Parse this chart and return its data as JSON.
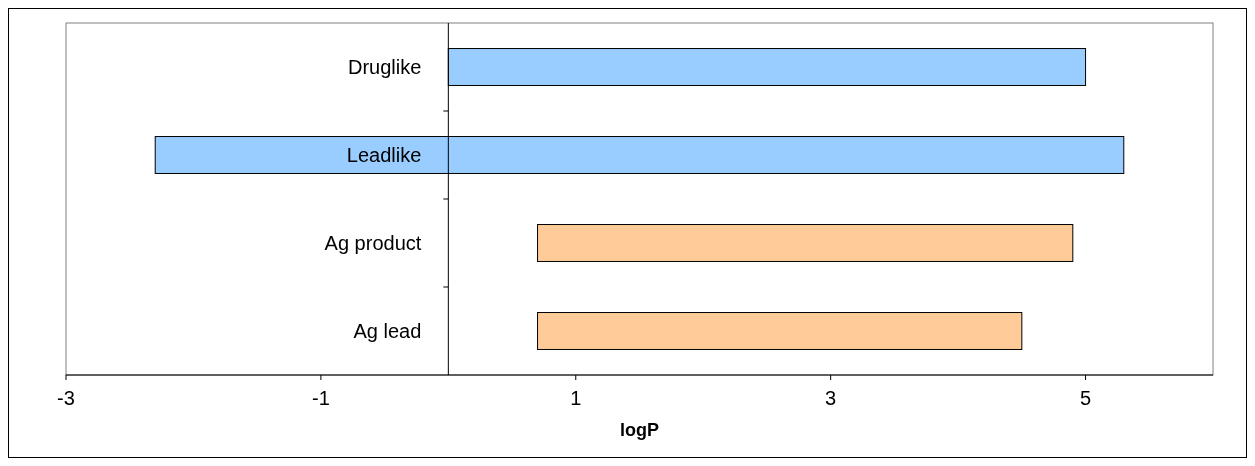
{
  "chart_data": {
    "type": "bar",
    "orientation": "horizontal",
    "xlabel": "logP",
    "categories": [
      "Druglike",
      "Leadlike",
      "Ag product",
      "Ag lead"
    ],
    "base": [
      0,
      -2.3,
      0.7,
      0.7
    ],
    "values": [
      5.0,
      7.6,
      4.2,
      3.8
    ],
    "colors": [
      "#99ccff",
      "#99ccff",
      "#ffcc99",
      "#ffcc99"
    ],
    "xlim": [
      -3,
      6
    ],
    "xticks": [
      -3,
      -1,
      1,
      3,
      5
    ],
    "grid": false
  }
}
